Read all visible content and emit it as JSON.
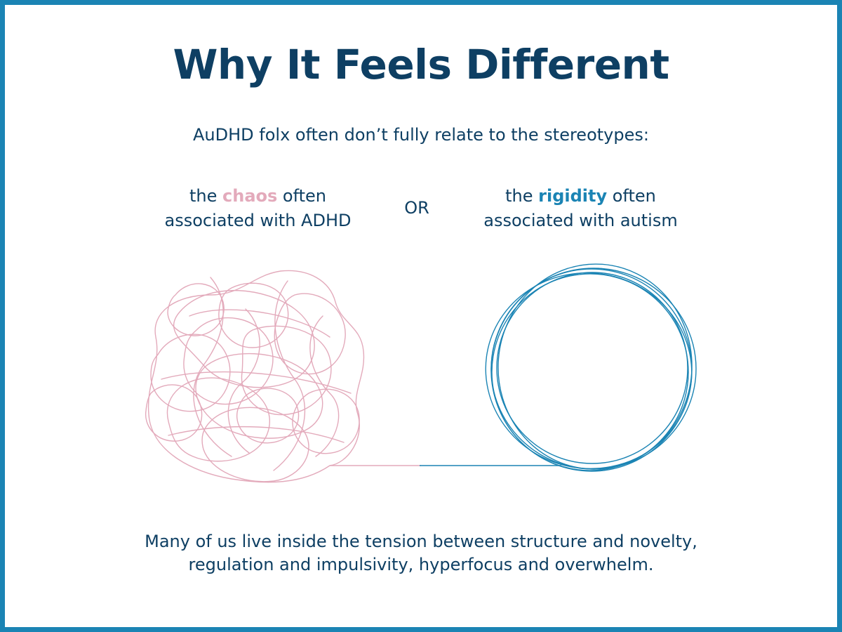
{
  "title": "Why It Feels Different",
  "subtitle": "AuDHD folx often don’t fully relate to the stereotypes:",
  "left": {
    "prefix": "the ",
    "keyword": "chaos",
    "suffix": " often",
    "line2": "associated with ADHD"
  },
  "separator": "OR",
  "right": {
    "prefix": "the ",
    "keyword": "rigidity",
    "suffix": " often",
    "line2": "associated with autism"
  },
  "footer": {
    "line1": "Many of us live inside the tension between structure and novelty,",
    "line2": "regulation and impulsivity, hyperfocus and overwhelm."
  },
  "colors": {
    "title": "#0e3f63",
    "border": "#1b84b4",
    "chaos": "#e3aabb",
    "rigidity": "#1b84b4"
  },
  "icons": [
    "tangled-scribble-icon",
    "circle-loop-icon"
  ]
}
